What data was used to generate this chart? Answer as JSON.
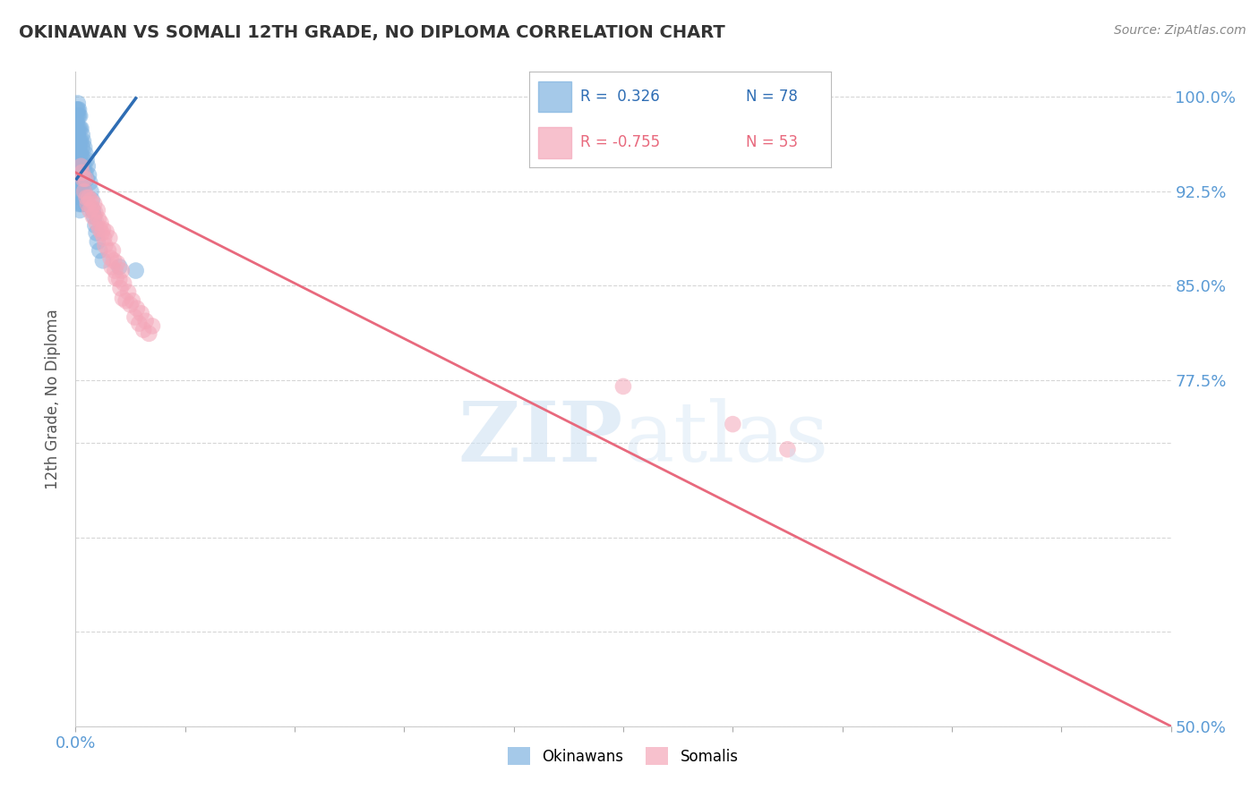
{
  "title": "OKINAWAN VS SOMALI 12TH GRADE, NO DIPLOMA CORRELATION CHART",
  "source": "Source: ZipAtlas.com",
  "ylabel": "12th Grade, No Diploma",
  "xlim": [
    0.0,
    1.0
  ],
  "ylim": [
    0.5,
    1.02
  ],
  "ytick_vals": [
    0.5,
    0.575,
    0.65,
    0.725,
    0.775,
    0.85,
    0.925,
    1.0
  ],
  "ytick_labels": [
    "50.0%",
    "",
    "",
    "",
    "77.5%",
    "85.0%",
    "92.5%",
    "100.0%"
  ],
  "xtick_vals": [
    0.0,
    0.1,
    0.2,
    0.3,
    0.4,
    0.5,
    0.6,
    0.7,
    0.8,
    0.9,
    1.0
  ],
  "xtick_labels": [
    "0.0%",
    "",
    "",
    "",
    "",
    "",
    "",
    "",
    "",
    "",
    ""
  ],
  "title_color": "#333333",
  "axis_color": "#5b9bd5",
  "source_color": "#888888",
  "blue_color": "#7fb3e0",
  "pink_color": "#f4a7b9",
  "blue_line_color": "#2e6db4",
  "pink_line_color": "#e8697d",
  "legend_R_blue": "R =  0.326",
  "legend_N_blue": "N = 78",
  "legend_R_pink": "R = -0.755",
  "legend_N_pink": "N = 53",
  "okinawan_x": [
    0.001,
    0.001,
    0.001,
    0.001,
    0.001,
    0.001,
    0.001,
    0.001,
    0.001,
    0.001,
    0.002,
    0.002,
    0.002,
    0.002,
    0.002,
    0.002,
    0.002,
    0.002,
    0.002,
    0.002,
    0.002,
    0.002,
    0.003,
    0.003,
    0.003,
    0.003,
    0.003,
    0.003,
    0.003,
    0.003,
    0.003,
    0.003,
    0.004,
    0.004,
    0.004,
    0.004,
    0.004,
    0.004,
    0.004,
    0.004,
    0.005,
    0.005,
    0.005,
    0.005,
    0.005,
    0.005,
    0.006,
    0.006,
    0.006,
    0.006,
    0.006,
    0.007,
    0.007,
    0.007,
    0.007,
    0.008,
    0.008,
    0.008,
    0.009,
    0.009,
    0.009,
    0.01,
    0.01,
    0.01,
    0.011,
    0.012,
    0.013,
    0.014,
    0.015,
    0.016,
    0.017,
    0.018,
    0.019,
    0.02,
    0.022,
    0.025,
    0.04,
    0.055
  ],
  "okinawan_y": [
    0.99,
    0.985,
    0.98,
    0.975,
    0.97,
    0.965,
    0.96,
    0.955,
    0.95,
    0.945,
    0.995,
    0.99,
    0.985,
    0.975,
    0.97,
    0.965,
    0.96,
    0.955,
    0.95,
    0.94,
    0.935,
    0.93,
    0.99,
    0.985,
    0.975,
    0.965,
    0.96,
    0.955,
    0.945,
    0.935,
    0.925,
    0.915,
    0.985,
    0.975,
    0.965,
    0.955,
    0.945,
    0.93,
    0.92,
    0.91,
    0.975,
    0.965,
    0.955,
    0.94,
    0.93,
    0.915,
    0.97,
    0.96,
    0.945,
    0.93,
    0.915,
    0.965,
    0.95,
    0.935,
    0.92,
    0.96,
    0.945,
    0.925,
    0.955,
    0.94,
    0.92,
    0.95,
    0.935,
    0.915,
    0.945,
    0.938,
    0.932,
    0.925,
    0.918,
    0.91,
    0.905,
    0.898,
    0.892,
    0.885,
    0.878,
    0.87,
    0.865,
    0.862
  ],
  "somali_x": [
    0.005,
    0.006,
    0.007,
    0.008,
    0.009,
    0.01,
    0.011,
    0.012,
    0.013,
    0.014,
    0.015,
    0.016,
    0.017,
    0.018,
    0.019,
    0.02,
    0.021,
    0.022,
    0.023,
    0.024,
    0.025,
    0.026,
    0.027,
    0.028,
    0.03,
    0.031,
    0.032,
    0.033,
    0.034,
    0.035,
    0.036,
    0.037,
    0.038,
    0.04,
    0.041,
    0.042,
    0.043,
    0.044,
    0.046,
    0.048,
    0.05,
    0.052,
    0.054,
    0.056,
    0.058,
    0.06,
    0.062,
    0.064,
    0.067,
    0.07,
    0.5,
    0.6,
    0.65
  ],
  "somali_y": [
    0.945,
    0.94,
    0.935,
    0.925,
    0.935,
    0.92,
    0.915,
    0.92,
    0.91,
    0.918,
    0.912,
    0.905,
    0.915,
    0.908,
    0.9,
    0.91,
    0.903,
    0.895,
    0.9,
    0.892,
    0.895,
    0.888,
    0.882,
    0.893,
    0.878,
    0.888,
    0.872,
    0.865,
    0.878,
    0.87,
    0.862,
    0.856,
    0.868,
    0.855,
    0.848,
    0.862,
    0.84,
    0.852,
    0.838,
    0.845,
    0.835,
    0.838,
    0.825,
    0.832,
    0.82,
    0.828,
    0.815,
    0.822,
    0.812,
    0.818,
    0.77,
    0.74,
    0.72
  ],
  "blue_trendline_x": [
    0.001,
    0.055
  ],
  "blue_trendline_y": [
    0.935,
    0.999
  ],
  "pink_trendline_x": [
    0.0,
    1.0
  ],
  "pink_trendline_y": [
    0.94,
    0.5
  ]
}
